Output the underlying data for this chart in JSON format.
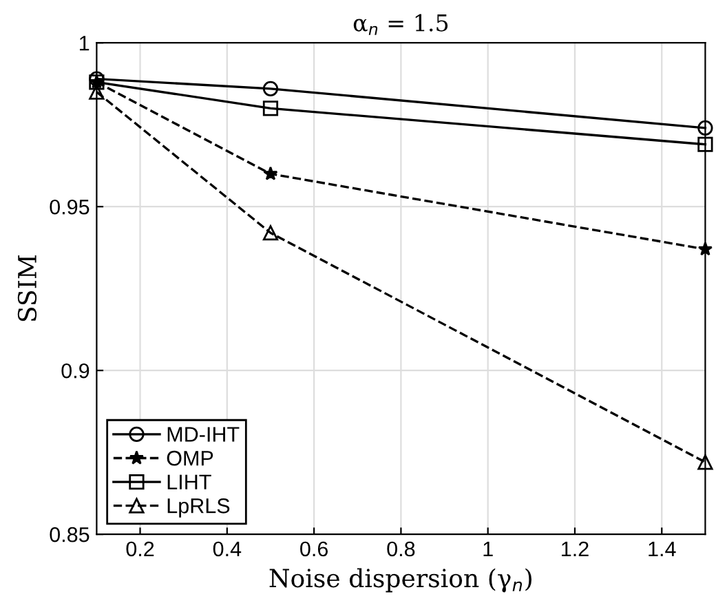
{
  "chart_data": {
    "type": "line",
    "title": "α$_{n}$ = 1.5",
    "xlabel": "Noise dispersion (γ$_{n}$)",
    "ylabel": "SSIM",
    "x": [
      0.1,
      0.5,
      1.5
    ],
    "series": [
      {
        "name": "MD-IHT",
        "color": "#000000",
        "marker": "circle",
        "line_style": "solid",
        "values": [
          0.989,
          0.986,
          0.974
        ]
      },
      {
        "name": "OMP",
        "color": "#000000",
        "marker": "star",
        "line_style": "dashed",
        "values": [
          0.988,
          0.96,
          0.937
        ]
      },
      {
        "name": "LIHT",
        "color": "#000000",
        "marker": "square",
        "line_style": "solid",
        "values": [
          0.988,
          0.98,
          0.969
        ]
      },
      {
        "name": "LpRLS",
        "color": "#000000",
        "marker": "triangle",
        "line_style": "dashed",
        "values": [
          0.985,
          0.942,
          0.872
        ]
      }
    ],
    "xlim": [
      0.1,
      1.5
    ],
    "xticks": [
      0.2,
      0.4,
      0.6,
      0.8,
      1,
      1.2,
      1.4
    ],
    "ylim": [
      0.85,
      1
    ],
    "yticks": [
      0.85,
      0.9,
      0.95,
      1
    ],
    "grid": true,
    "legend": "bottom left"
  }
}
